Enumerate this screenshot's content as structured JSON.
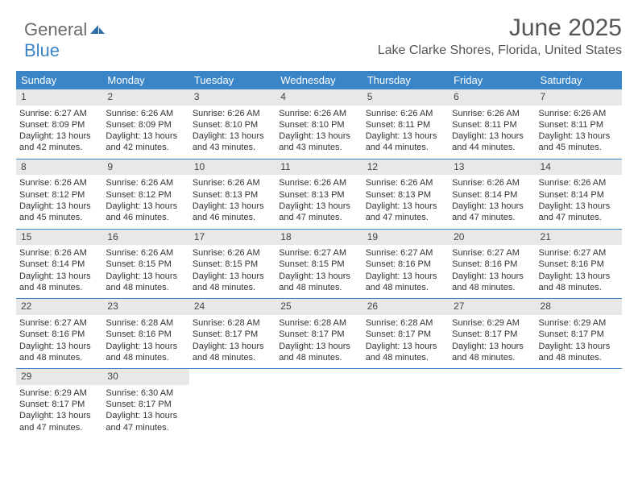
{
  "logo": {
    "line1": "General",
    "line2": "Blue"
  },
  "month_title": "June 2025",
  "location": "Lake Clarke Shores, Florida, United States",
  "day_names": [
    "Sunday",
    "Monday",
    "Tuesday",
    "Wednesday",
    "Thursday",
    "Friday",
    "Saturday"
  ],
  "colors": {
    "header_bg": "#3a85c7",
    "header_text": "#ffffff",
    "band_bg": "#e8e8e8",
    "text": "#333333"
  },
  "weeks": [
    [
      {
        "n": "1",
        "sr": "6:27 AM",
        "ss": "8:09 PM",
        "dl": "13 hours and 42 minutes."
      },
      {
        "n": "2",
        "sr": "6:26 AM",
        "ss": "8:09 PM",
        "dl": "13 hours and 42 minutes."
      },
      {
        "n": "3",
        "sr": "6:26 AM",
        "ss": "8:10 PM",
        "dl": "13 hours and 43 minutes."
      },
      {
        "n": "4",
        "sr": "6:26 AM",
        "ss": "8:10 PM",
        "dl": "13 hours and 43 minutes."
      },
      {
        "n": "5",
        "sr": "6:26 AM",
        "ss": "8:11 PM",
        "dl": "13 hours and 44 minutes."
      },
      {
        "n": "6",
        "sr": "6:26 AM",
        "ss": "8:11 PM",
        "dl": "13 hours and 44 minutes."
      },
      {
        "n": "7",
        "sr": "6:26 AM",
        "ss": "8:11 PM",
        "dl": "13 hours and 45 minutes."
      }
    ],
    [
      {
        "n": "8",
        "sr": "6:26 AM",
        "ss": "8:12 PM",
        "dl": "13 hours and 45 minutes."
      },
      {
        "n": "9",
        "sr": "6:26 AM",
        "ss": "8:12 PM",
        "dl": "13 hours and 46 minutes."
      },
      {
        "n": "10",
        "sr": "6:26 AM",
        "ss": "8:13 PM",
        "dl": "13 hours and 46 minutes."
      },
      {
        "n": "11",
        "sr": "6:26 AM",
        "ss": "8:13 PM",
        "dl": "13 hours and 47 minutes."
      },
      {
        "n": "12",
        "sr": "6:26 AM",
        "ss": "8:13 PM",
        "dl": "13 hours and 47 minutes."
      },
      {
        "n": "13",
        "sr": "6:26 AM",
        "ss": "8:14 PM",
        "dl": "13 hours and 47 minutes."
      },
      {
        "n": "14",
        "sr": "6:26 AM",
        "ss": "8:14 PM",
        "dl": "13 hours and 47 minutes."
      }
    ],
    [
      {
        "n": "15",
        "sr": "6:26 AM",
        "ss": "8:14 PM",
        "dl": "13 hours and 48 minutes."
      },
      {
        "n": "16",
        "sr": "6:26 AM",
        "ss": "8:15 PM",
        "dl": "13 hours and 48 minutes."
      },
      {
        "n": "17",
        "sr": "6:26 AM",
        "ss": "8:15 PM",
        "dl": "13 hours and 48 minutes."
      },
      {
        "n": "18",
        "sr": "6:27 AM",
        "ss": "8:15 PM",
        "dl": "13 hours and 48 minutes."
      },
      {
        "n": "19",
        "sr": "6:27 AM",
        "ss": "8:16 PM",
        "dl": "13 hours and 48 minutes."
      },
      {
        "n": "20",
        "sr": "6:27 AM",
        "ss": "8:16 PM",
        "dl": "13 hours and 48 minutes."
      },
      {
        "n": "21",
        "sr": "6:27 AM",
        "ss": "8:16 PM",
        "dl": "13 hours and 48 minutes."
      }
    ],
    [
      {
        "n": "22",
        "sr": "6:27 AM",
        "ss": "8:16 PM",
        "dl": "13 hours and 48 minutes."
      },
      {
        "n": "23",
        "sr": "6:28 AM",
        "ss": "8:16 PM",
        "dl": "13 hours and 48 minutes."
      },
      {
        "n": "24",
        "sr": "6:28 AM",
        "ss": "8:17 PM",
        "dl": "13 hours and 48 minutes."
      },
      {
        "n": "25",
        "sr": "6:28 AM",
        "ss": "8:17 PM",
        "dl": "13 hours and 48 minutes."
      },
      {
        "n": "26",
        "sr": "6:28 AM",
        "ss": "8:17 PM",
        "dl": "13 hours and 48 minutes."
      },
      {
        "n": "27",
        "sr": "6:29 AM",
        "ss": "8:17 PM",
        "dl": "13 hours and 48 minutes."
      },
      {
        "n": "28",
        "sr": "6:29 AM",
        "ss": "8:17 PM",
        "dl": "13 hours and 48 minutes."
      }
    ],
    [
      {
        "n": "29",
        "sr": "6:29 AM",
        "ss": "8:17 PM",
        "dl": "13 hours and 47 minutes."
      },
      {
        "n": "30",
        "sr": "6:30 AM",
        "ss": "8:17 PM",
        "dl": "13 hours and 47 minutes."
      },
      null,
      null,
      null,
      null,
      null
    ]
  ],
  "labels": {
    "sunrise": "Sunrise:",
    "sunset": "Sunset:",
    "daylight": "Daylight:"
  }
}
